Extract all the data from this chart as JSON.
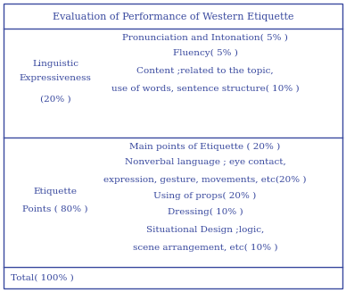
{
  "title": "Evaluation of Performance of Western Etiquette",
  "text_color": "#3a4a9f",
  "border_color": "#3a4a9f",
  "row1_left_lines": [
    "Linguistic",
    "Expressiveness",
    "(20% )"
  ],
  "row1_right": [
    "Pronunciation and Intonation( 5% )",
    "Fluency( 5% )",
    "Content ;related to the topic,",
    "use of words, sentence structure( 10% )"
  ],
  "row2_left_lines": [
    "Etiquette",
    "Points ( 80% )"
  ],
  "row2_right": [
    "Main points of Etiquette ( 20% )",
    "Nonverbal language ; eye contact,",
    "expression, gesture, movements, etc(20% )",
    "Using of props( 20% )",
    "Dressing( 10% )",
    "Situational Design ;logic,",
    "scene arrangement, etc( 10% )"
  ],
  "footer": "Total( 100% )",
  "font_size": 7.5,
  "title_font_size": 8.0,
  "fig_width": 3.88,
  "fig_height": 3.27,
  "dpi": 100
}
